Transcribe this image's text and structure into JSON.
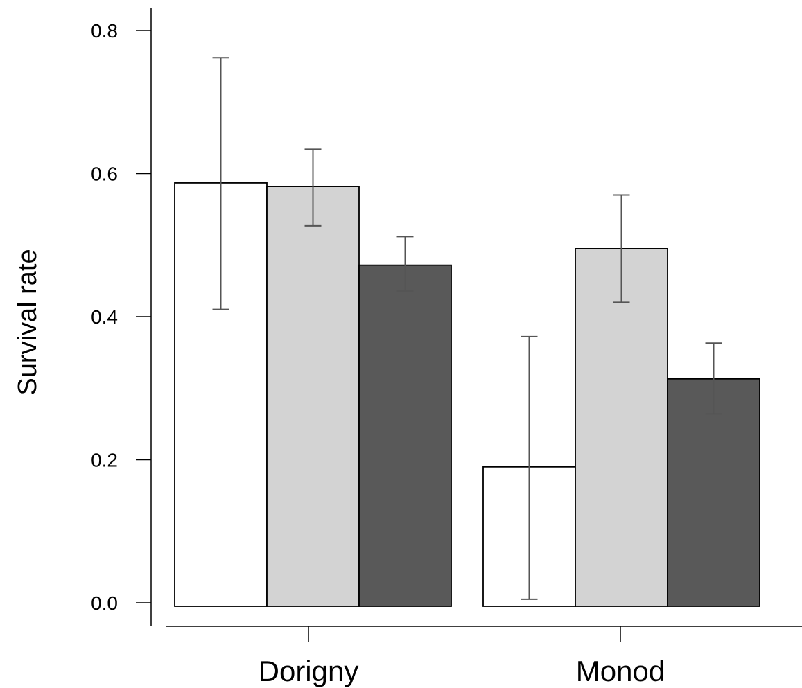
{
  "chart_data": {
    "type": "bar",
    "title": "",
    "xlabel": "",
    "ylabel": "Survival rate",
    "ylim": [
      0.0,
      0.8
    ],
    "yticks": [
      0.0,
      0.2,
      0.4,
      0.6,
      0.8
    ],
    "ytick_labels": [
      "0.0",
      "0.2",
      "0.4",
      "0.6",
      "0.8"
    ],
    "categories": [
      "Dorigny",
      "Monod"
    ],
    "grid": false,
    "legend": "none",
    "series": [
      {
        "color": "#ffffff",
        "values": [
          0.587,
          0.19
        ],
        "err_low": [
          0.41,
          0.005
        ],
        "err_high": [
          0.762,
          0.372
        ]
      },
      {
        "color": "#d3d3d3",
        "values": [
          0.582,
          0.495
        ],
        "err_low": [
          0.527,
          0.42
        ],
        "err_high": [
          0.634,
          0.57
        ]
      },
      {
        "color": "#595959",
        "values": [
          0.472,
          0.313
        ],
        "err_low": [
          0.436,
          0.264
        ],
        "err_high": [
          0.512,
          0.363
        ]
      }
    ]
  }
}
